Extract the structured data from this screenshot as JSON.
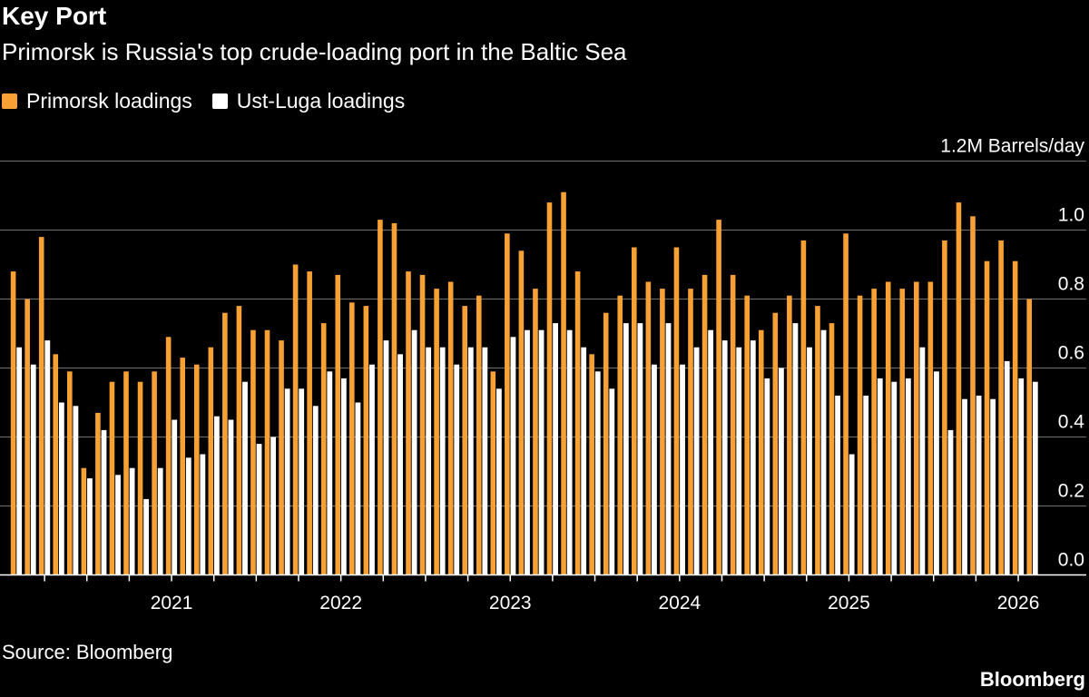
{
  "header": {
    "title": "Key Port",
    "subtitle": "Primorsk is Russia's top crude-loading port in the Baltic Sea"
  },
  "footer": {
    "source": "Source: Bloomberg",
    "logo": "Bloomberg"
  },
  "colors": {
    "primorsk": "#f7a135",
    "ust_luga": "#ffffff",
    "grid": "#666666",
    "background": "#000000"
  },
  "chart_data": {
    "type": "bar",
    "title": "Key Port",
    "subtitle": "Primorsk is Russia's top crude-loading port in the Baltic Sea",
    "ylabel": "",
    "y_unit_label": "1.2M Barrels/day",
    "ylim": [
      0,
      1.2
    ],
    "yticks": [
      "0.0",
      "0.2",
      "0.4",
      "0.6",
      "0.8",
      "1.0"
    ],
    "x_tick_labels": [
      "2021",
      "2022",
      "2023",
      "2024",
      "2025",
      "2026"
    ],
    "grid": true,
    "legend_placement": "top-left",
    "start_month": "2020-02",
    "categories": [
      "2020-02",
      "2020-03",
      "2020-04",
      "2020-05",
      "2020-06",
      "2020-07",
      "2020-08",
      "2020-09",
      "2020-10",
      "2020-11",
      "2020-12",
      "2021-01",
      "2021-02",
      "2021-03",
      "2021-04",
      "2021-05",
      "2021-06",
      "2021-07",
      "2021-08",
      "2021-09",
      "2021-10",
      "2021-11",
      "2021-12",
      "2022-01",
      "2022-02",
      "2022-03",
      "2022-04",
      "2022-05",
      "2022-06",
      "2022-07",
      "2022-08",
      "2022-09",
      "2022-10",
      "2022-11",
      "2022-12",
      "2023-01",
      "2023-02",
      "2023-03",
      "2023-04",
      "2023-05",
      "2023-06",
      "2023-07",
      "2023-08",
      "2023-09",
      "2023-10",
      "2023-11",
      "2023-12",
      "2024-01",
      "2024-02",
      "2024-03",
      "2024-04",
      "2024-05",
      "2024-06",
      "2024-07",
      "2024-08",
      "2024-09",
      "2024-10",
      "2024-11",
      "2024-12",
      "2025-01",
      "2025-02",
      "2025-03",
      "2025-04",
      "2025-05",
      "2025-06",
      "2025-07",
      "2025-08",
      "2025-09",
      "2025-10",
      "2025-11",
      "2025-12",
      "2026-01",
      "2026-02"
    ],
    "series": [
      {
        "name": "Primorsk loadings",
        "values": [
          0.88,
          0.8,
          0.98,
          0.64,
          0.59,
          0.31,
          0.47,
          0.56,
          0.59,
          0.56,
          0.59,
          0.69,
          0.63,
          0.61,
          0.66,
          0.76,
          0.78,
          0.71,
          0.71,
          0.68,
          0.9,
          0.88,
          0.73,
          0.87,
          0.79,
          0.78,
          1.03,
          1.02,
          0.88,
          0.87,
          0.83,
          0.85,
          0.78,
          0.81,
          0.59,
          0.99,
          0.94,
          0.83,
          1.08,
          1.11,
          0.88,
          0.64,
          0.76,
          0.81,
          0.95,
          0.85,
          0.83,
          0.95,
          0.83,
          0.87,
          1.03,
          0.87,
          0.81,
          0.71,
          0.76,
          0.81,
          0.97,
          0.78,
          0.73,
          0.99,
          0.81,
          0.83,
          0.85,
          0.83,
          0.85,
          0.85,
          0.97,
          1.08,
          1.04,
          0.91,
          0.97,
          0.91,
          0.8
        ]
      },
      {
        "name": "Ust-Luga loadings",
        "values": [
          0.66,
          0.61,
          0.68,
          0.5,
          0.49,
          0.28,
          0.42,
          0.29,
          0.31,
          0.22,
          0.31,
          0.45,
          0.34,
          0.35,
          0.46,
          0.45,
          0.56,
          0.38,
          0.4,
          0.54,
          0.54,
          0.49,
          0.59,
          0.57,
          0.5,
          0.61,
          0.68,
          0.64,
          0.71,
          0.66,
          0.66,
          0.61,
          0.66,
          0.66,
          0.54,
          0.69,
          0.71,
          0.71,
          0.73,
          0.71,
          0.66,
          0.59,
          0.54,
          0.73,
          0.73,
          0.61,
          0.73,
          0.61,
          0.66,
          0.71,
          0.68,
          0.66,
          0.68,
          0.57,
          0.6,
          0.73,
          0.66,
          0.71,
          0.52,
          0.35,
          0.52,
          0.57,
          0.56,
          0.57,
          0.66,
          0.59,
          0.42,
          0.51,
          0.52,
          0.51,
          0.62,
          0.57,
          0.56
        ]
      }
    ]
  }
}
